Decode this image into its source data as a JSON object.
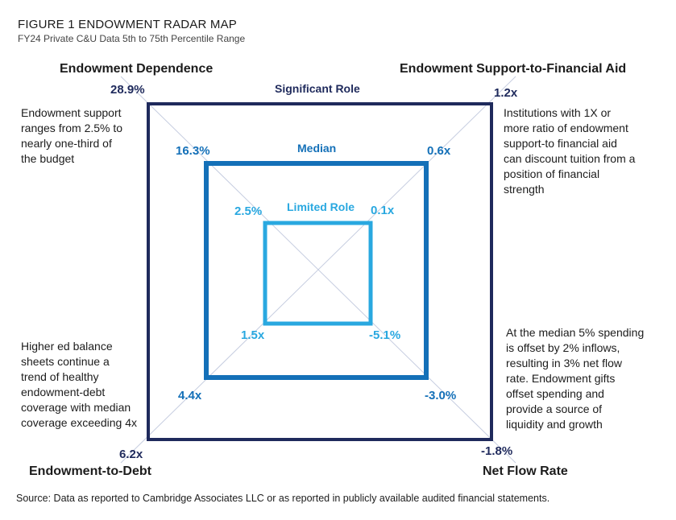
{
  "title": "FIGURE 1  ENDOWMENT RADAR MAP",
  "subtitle": "FY24 Private C&U Data 5th to 75th Percentile Range",
  "axes": {
    "top_left": "Endowment Dependence",
    "top_right": "Endowment Support-to-Financial Aid",
    "bottom_left": "Endowment-to-Debt",
    "bottom_right": "Net Flow Rate"
  },
  "levels": {
    "significant": {
      "label": "Significant Role",
      "tl": "28.9%",
      "tr": "1.2x",
      "bl": "6.2x",
      "br": "-1.8%",
      "color": "#1f2a5c"
    },
    "median": {
      "label": "Median",
      "tl": "16.3%",
      "tr": "0.6x",
      "bl": "4.4x",
      "br": "-3.0%",
      "color": "#1470b8"
    },
    "limited": {
      "label": "Limited Role",
      "tl": "2.5%",
      "tr": "0.1x",
      "bl": "1.5x",
      "br": "-5.1%",
      "color": "#29a8e0"
    }
  },
  "annotations": {
    "top_left": [
      "Endowment support",
      "ranges from 2.5% to",
      "nearly one-third of",
      "the budget"
    ],
    "top_right": [
      "Institutions with 1X or",
      "more ratio of endowment",
      "support-to financial aid",
      "can discount tuition from a",
      "position of financial",
      "strength"
    ],
    "bottom_left": [
      "Higher ed balance",
      "sheets continue a",
      "trend of healthy",
      "endowment-debt",
      "coverage with median",
      "coverage exceeding 4x"
    ],
    "bottom_right": [
      "At the median 5% spending",
      "is offset by 2% inflows,",
      "resulting in 3% net flow",
      "rate. Endowment gifts",
      "offset spending and",
      "provide a source of",
      "liquidity and growth"
    ]
  },
  "source": "Source: Data as reported to Cambridge Associates LLC or as reported in publicly available audited financial statements."
}
